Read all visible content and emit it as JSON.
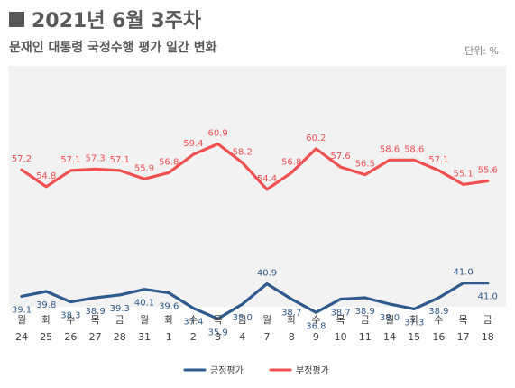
{
  "header": {
    "title": "2021년 6월 3주차",
    "subtitle": "문재인 대통령 국정수행 평가 일간 변화",
    "unit": "단위: %"
  },
  "chart_data": {
    "type": "line",
    "x_weekday": [
      "월",
      "화",
      "수",
      "목",
      "금",
      "월",
      "화",
      "수",
      "목",
      "금",
      "월",
      "화",
      "수",
      "목",
      "금",
      "월",
      "화",
      "수",
      "목",
      "금"
    ],
    "x_day": [
      "24",
      "25",
      "26",
      "27",
      "28",
      "31",
      "1",
      "2",
      "3",
      "4",
      "7",
      "8",
      "9",
      "10",
      "11",
      "14",
      "15",
      "16",
      "17",
      "18"
    ],
    "series": [
      {
        "name": "부정평가",
        "color": "#f05050",
        "values": [
          57.2,
          54.8,
          57.1,
          57.3,
          57.1,
          55.9,
          56.8,
          59.4,
          60.9,
          58.2,
          54.4,
          56.8,
          60.2,
          57.6,
          56.5,
          58.6,
          58.6,
          57.1,
          55.1,
          55.6
        ]
      },
      {
        "name": "긍정평가",
        "color": "#2e5a8e",
        "values": [
          39.1,
          39.8,
          38.3,
          38.9,
          39.3,
          40.1,
          39.6,
          37.4,
          35.9,
          38.0,
          40.9,
          38.7,
          36.8,
          38.7,
          38.9,
          38.0,
          37.3,
          38.9,
          41.0,
          41.0
        ]
      }
    ],
    "plot_background": "#f2f2f2",
    "legend": {
      "position": "bottom-center"
    },
    "grid": false
  }
}
